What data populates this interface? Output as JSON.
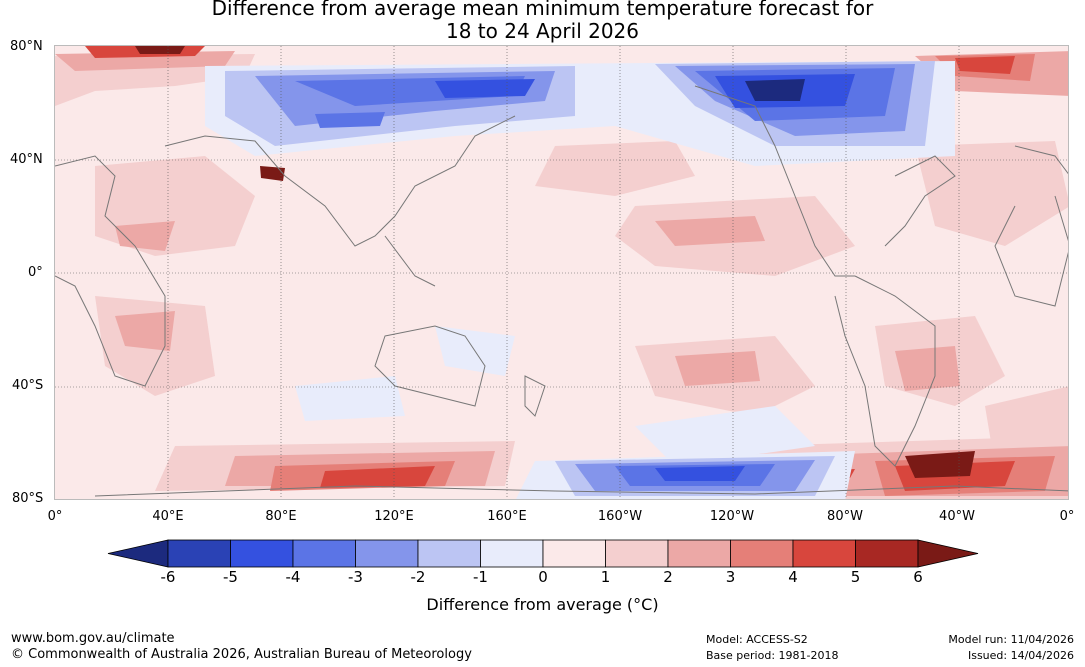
{
  "title_line1": "Difference from average mean minimum temperature forecast for",
  "title_line2": "18 to 24 April 2026",
  "lat_labels": [
    "80°N",
    "40°N",
    "0°",
    "40°S",
    "80°S"
  ],
  "lon_labels": [
    "0°",
    "40°E",
    "80°E",
    "120°E",
    "160°E",
    "160°W",
    "120°W",
    "80°W",
    "40°W",
    "0°"
  ],
  "colorbar": {
    "ticks": [
      "-6",
      "-5",
      "-4",
      "-3",
      "-2",
      "-1",
      "0",
      "1",
      "2",
      "3",
      "4",
      "5",
      "6"
    ],
    "colors": [
      "#1c2a7e",
      "#2a42b5",
      "#3451e0",
      "#5b74e6",
      "#8495eb",
      "#bcc5f3",
      "#e8ecfb",
      "#fbe9e9",
      "#f4cfcf",
      "#eca8a6",
      "#e57f78",
      "#d8463d",
      "#a82823",
      "#7a1a16"
    ],
    "label": "Difference from average (°C)"
  },
  "footer": {
    "url": "www.bom.gov.au/climate",
    "copyright": "© Commonwealth of Australia 2026, Australian Bureau of Meteorology",
    "model": "Model: ACCESS-S2",
    "base_period": "Base period: 1981-2018",
    "model_run": "Model run: 11/04/2026",
    "issued": "Issued: 14/04/2026"
  }
}
